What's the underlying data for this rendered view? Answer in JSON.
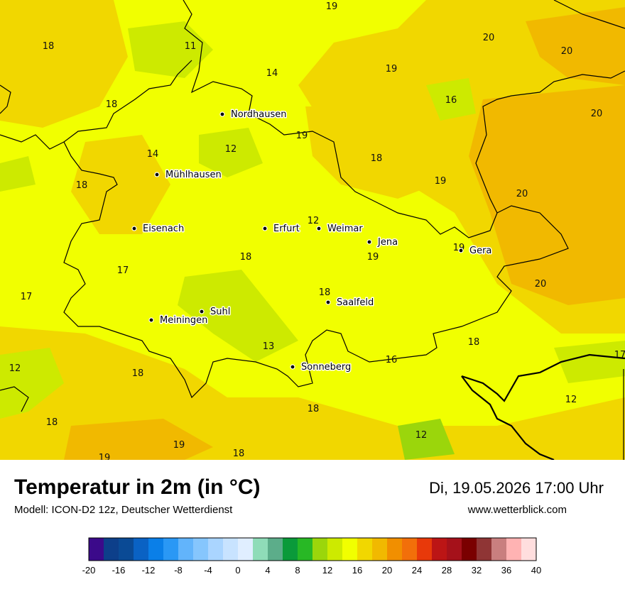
{
  "map": {
    "background_color": "#f1ff00",
    "boundary_color": "#000000",
    "cities": [
      {
        "name": "Nordhausen"
      },
      {
        "name": "Mühlhausen"
      },
      {
        "name": "Eisenach"
      },
      {
        "name": "Erfurt"
      },
      {
        "name": "Weimar"
      },
      {
        "name": "Jena"
      },
      {
        "name": "Gera"
      },
      {
        "name": "Suhl"
      },
      {
        "name": "Meiningen"
      },
      {
        "name": "Saalfeld"
      },
      {
        "name": "Sonneberg"
      }
    ],
    "temperature_labels": [
      "19",
      "11",
      "18",
      "14",
      "20",
      "20",
      "19",
      "18",
      "16",
      "20",
      "19",
      "14",
      "12",
      "18",
      "18",
      "19",
      "20",
      "12",
      "18",
      "19",
      "19",
      "17",
      "18",
      "17",
      "20",
      "12",
      "18",
      "13",
      "16",
      "17",
      "18",
      "12",
      "18",
      "18",
      "12",
      "19",
      "19",
      "18"
    ]
  },
  "title": "Temperatur in 2m (in °C)",
  "subtitle": "Modell: ICON-D2 12z, Deutscher Wetterdienst",
  "datetime": "Di, 19.05.2026 17:00 Uhr",
  "website": "www.wetterblick.com",
  "legend": {
    "ticks": [
      "-20",
      "-16",
      "-12",
      "-8",
      "-4",
      "0",
      "4",
      "8",
      "12",
      "16",
      "20",
      "24",
      "28",
      "32",
      "36",
      "40"
    ],
    "colors": [
      "#3b0a8a",
      "#0d3f8a",
      "#0a4a95",
      "#0a62c4",
      "#0a7fe8",
      "#2a98f5",
      "#62b4fb",
      "#86c6fd",
      "#aad5ff",
      "#c8e3ff",
      "#e0eeff",
      "#8fdcb8",
      "#5cad8a",
      "#0a9a3a",
      "#28b825",
      "#9bd60b",
      "#cdea00",
      "#f1ff00",
      "#f1d700",
      "#f1b900",
      "#f18f00",
      "#f26f0a",
      "#e8390a",
      "#bc1515",
      "#a5111a",
      "#7a0000",
      "#8f3535",
      "#c97f7f",
      "#ffb3b3",
      "#ffdede"
    ]
  }
}
